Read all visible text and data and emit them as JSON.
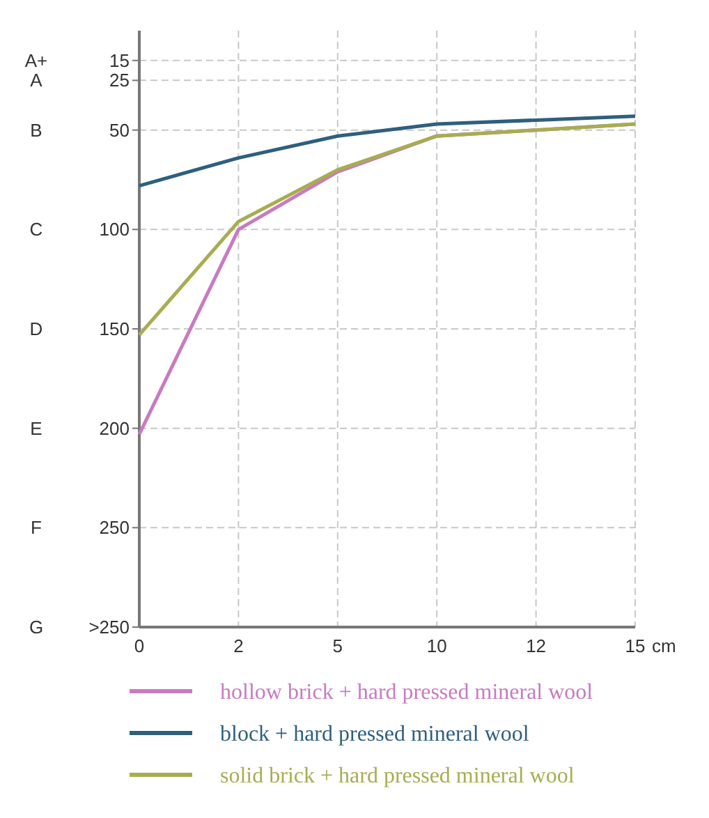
{
  "chart_data": {
    "type": "line",
    "categories": [
      "0",
      "2",
      "5",
      "10",
      "12",
      "15"
    ],
    "xlabel": "cm",
    "ylim": [
      300,
      0
    ],
    "yticks": [
      15,
      25,
      50,
      100,
      150,
      200,
      250,
      {
        "value": 300,
        "label": ">250"
      }
    ],
    "annotations": [
      "A+",
      "A",
      "B",
      "C",
      "D",
      "E",
      "F",
      "G"
    ],
    "grid": true,
    "legend": "bottom",
    "series": [
      {
        "name": "hollow brick + hard pressed mineral wool",
        "color": "#c77bc0",
        "values": [
          203,
          100,
          71,
          53,
          50,
          47
        ]
      },
      {
        "name": "block + hard pressed mineral wool",
        "color": "#2e5f7e",
        "values": [
          78,
          64,
          53,
          47,
          45,
          43
        ]
      },
      {
        "name": "solid brick + hard pressed mineral wool",
        "color": "#a7ad50",
        "values": [
          153,
          96,
          70,
          53,
          50,
          47
        ]
      }
    ]
  }
}
